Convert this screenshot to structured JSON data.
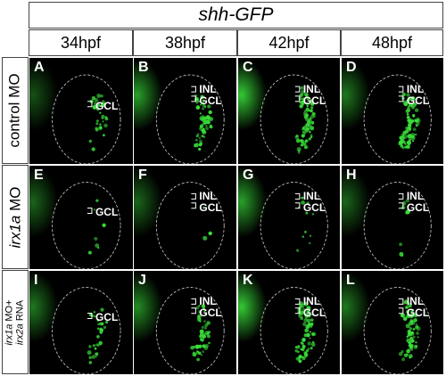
{
  "header": {
    "title": "shh-GFP"
  },
  "columns": [
    {
      "label": "34hpf"
    },
    {
      "label": "38hpf"
    },
    {
      "label": "42hpf"
    },
    {
      "label": "48hpf"
    }
  ],
  "rows": [
    {
      "label": "control MO",
      "gene": "",
      "rest": ""
    },
    {
      "label": "",
      "gene": "irx1a",
      "rest": " MO"
    },
    {
      "label": "",
      "line1_gene": "irx1a",
      "line1_rest": " MO+",
      "line2_gene": "irx2a",
      "line2_rest": " RNA"
    }
  ],
  "panels": [
    {
      "letter": "A",
      "layer1": "",
      "layer2": "GCL"
    },
    {
      "letter": "B",
      "layer1": "INL",
      "layer2": "GCL"
    },
    {
      "letter": "C",
      "layer1": "INL",
      "layer2": "GCL"
    },
    {
      "letter": "D",
      "layer1": "INL",
      "layer2": "GCL"
    },
    {
      "letter": "E",
      "layer1": "",
      "layer2": "GCL"
    },
    {
      "letter": "F",
      "layer1": "INL",
      "layer2": "GCL"
    },
    {
      "letter": "G",
      "layer1": "INL",
      "layer2": "GCL"
    },
    {
      "letter": "H",
      "layer1": "INL",
      "layer2": "GCL"
    },
    {
      "letter": "I",
      "layer1": "",
      "layer2": "GCL"
    },
    {
      "letter": "J",
      "layer1": "INL",
      "layer2": "GCL"
    },
    {
      "letter": "K",
      "layer1": "INL",
      "layer2": "GCL"
    },
    {
      "letter": "L",
      "layer1": "INL",
      "layer2": "GCL"
    }
  ],
  "colors": {
    "gfp": "#3adf3a",
    "background": "#000000",
    "outline": "#cfcfcf"
  }
}
